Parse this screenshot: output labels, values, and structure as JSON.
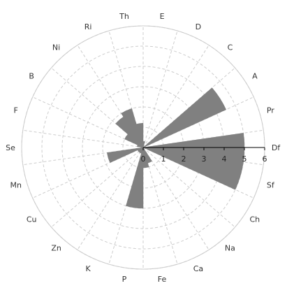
{
  "chart_data": {
    "type": "polar-bar",
    "title": "",
    "categories": [
      "Df",
      "Pr",
      "A",
      "C",
      "D",
      "E",
      "Th",
      "Ri",
      "Ni",
      "B",
      "F",
      "Se",
      "Mn",
      "Cu",
      "Zn",
      "K",
      "P",
      "Fe",
      "Ca",
      "Na",
      "Ch",
      "Sf"
    ],
    "values": [
      5,
      0,
      4.5,
      0,
      0,
      0.3,
      1.2,
      2.0,
      1.8,
      1.0,
      0.3,
      0,
      1.8,
      0.3,
      0.3,
      0.3,
      3.0,
      1.0,
      0.8,
      0,
      0,
      5
    ],
    "radial_ticks": [
      0,
      1,
      2,
      3,
      4,
      5,
      6
    ],
    "rmax": 6,
    "grid": true,
    "colors": {
      "bar": "#808080",
      "grid": "#cccccc",
      "axis": "#000000",
      "background": "#ffffff"
    }
  }
}
